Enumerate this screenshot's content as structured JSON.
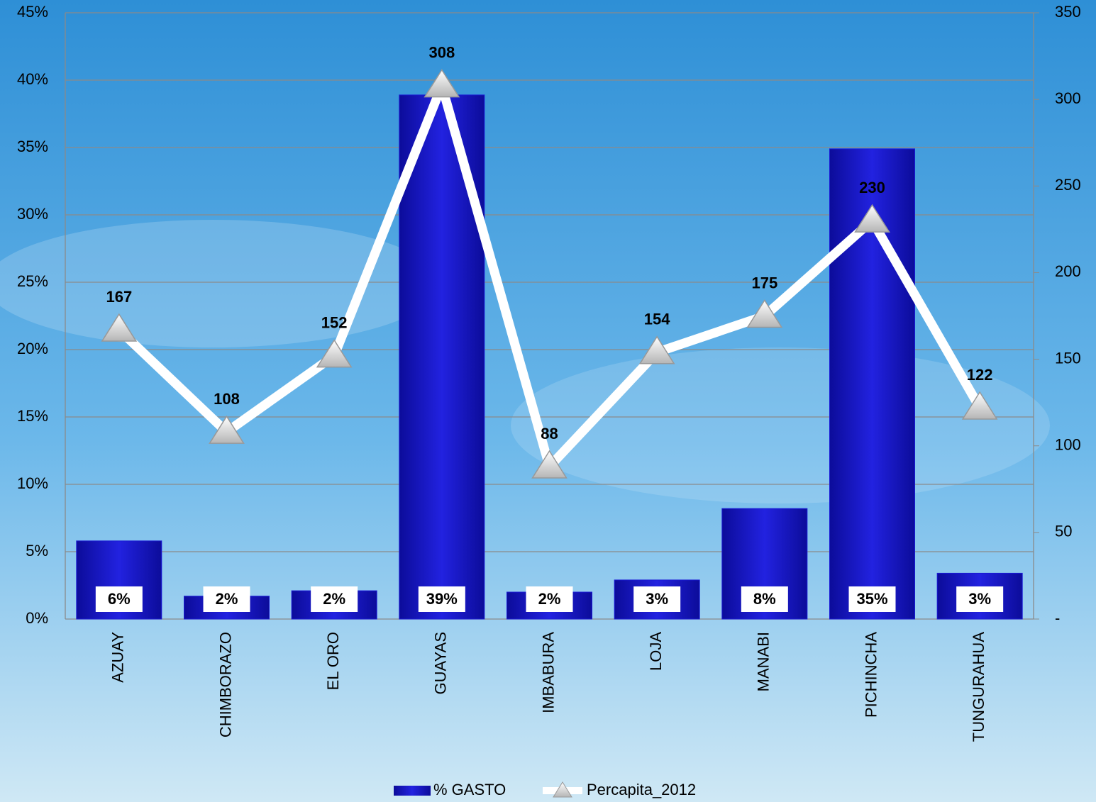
{
  "chart_data": {
    "type": "bar-line",
    "categories": [
      "AZUAY",
      "CHIMBORAZO",
      "EL ORO",
      "GUAYAS",
      "IMBABURA",
      "LOJA",
      "MANABI",
      "PICHINCHA",
      "TUNGURAHUA"
    ],
    "series": [
      {
        "name": "% GASTO",
        "type": "bar",
        "color": "#1a1ad6",
        "values": [
          5.8,
          1.7,
          2.1,
          38.9,
          2.0,
          2.9,
          8.2,
          34.9,
          3.4
        ],
        "value_labels": [
          "6%",
          "2%",
          "2%",
          "39%",
          "2%",
          "3%",
          "8%",
          "35%",
          "3%"
        ]
      },
      {
        "name": "Percapita_2012",
        "type": "line",
        "axis": "y2",
        "color": "#ffffff",
        "values": [
          167,
          108,
          152,
          308,
          88,
          154,
          175,
          230,
          122
        ]
      }
    ],
    "ylim": [
      0,
      45
    ],
    "yticks": [
      {
        "value": 0,
        "label": "0%"
      },
      {
        "value": 5,
        "label": "5%"
      },
      {
        "value": 10,
        "label": "10%"
      },
      {
        "value": 15,
        "label": "15%"
      },
      {
        "value": 20,
        "label": "20%"
      },
      {
        "value": 25,
        "label": "25%"
      },
      {
        "value": 30,
        "label": "30%"
      },
      {
        "value": 35,
        "label": "35%"
      },
      {
        "value": 40,
        "label": "40%"
      },
      {
        "value": 45,
        "label": "45%"
      }
    ],
    "y2lim": [
      0,
      350
    ],
    "y2ticks": [
      {
        "value": 0,
        "label": "-"
      },
      50,
      100,
      150,
      200,
      250,
      300,
      350
    ],
    "grid": true,
    "legend": "bottom"
  }
}
